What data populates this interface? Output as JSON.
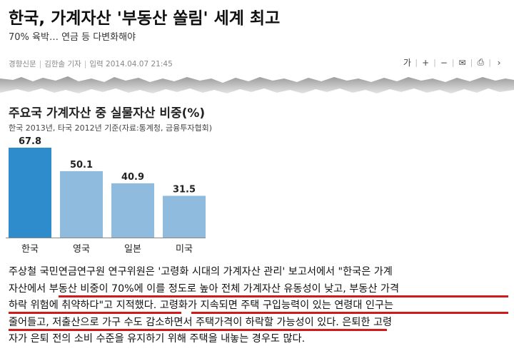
{
  "article": {
    "headline": "한국, 가계자산 '부동산 쏠림' 세계 최고",
    "subheadline": "70% 육박… 연금 등 다변화해야",
    "source": "경향신문",
    "reporter": "김한솔 기자",
    "published_label": "입력",
    "published_at": "2014.04.07 21:45"
  },
  "toolbar": {
    "font_label": "가",
    "enlarge": "+",
    "shrink": "−",
    "email": "✉",
    "print": "⎙",
    "more": "›"
  },
  "chart_data": {
    "type": "bar",
    "title": "주요국 가계자산 중 실물자산 비중(%)",
    "subtitle": "한국 2013년, 타국 2012년 기준(자료:통계청, 금융투자협회)",
    "categories": [
      "한국",
      "영국",
      "일본",
      "미국"
    ],
    "values": [
      67.8,
      50.1,
      40.9,
      31.5
    ],
    "value_labels": [
      "67.8",
      "50.1",
      "40.9",
      "31.5"
    ],
    "colors": [
      "#2e8bcc",
      "#8fbcde",
      "#8fbcde",
      "#8fbcde"
    ],
    "ylim": [
      0,
      80
    ],
    "grid": false,
    "xlabel": "",
    "ylabel": ""
  },
  "body": {
    "lines": [
      "주상철 국민연금연구원 연구위원은 '고령화 시대의 가계자산 관리' 보고서에서 \"한국은 가계",
      "자산에서 부동산 비중이 70%에 이를 정도로 높아 전체 가계자산 유동성이 낮고, 부동산 가격",
      "하락 위험에 취약하다\"고 지적했다. 고령화가 지속되면 주택 구입능력이 있는 연령대 인구는",
      "줄어들고, 저출산으로 가구 수도 감소하면서 주택가격이 하락할 가능성이 있다. 은퇴한 고령",
      "자가 은퇴 전의 소비 수준을 유지하기 위해 주택을 내놓는 경우도 많다."
    ],
    "highlight_color": "#d11b1b"
  }
}
